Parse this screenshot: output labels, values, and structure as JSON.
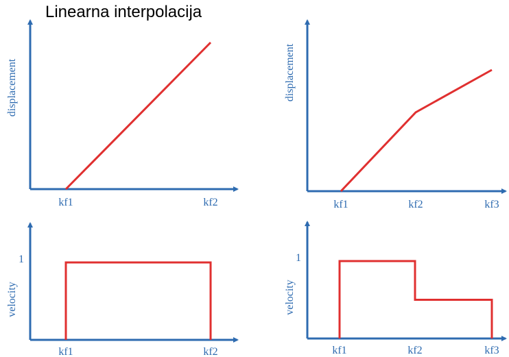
{
  "title": "Linearna interpolacija",
  "colors": {
    "axis": "#2e6bb0",
    "line": "#e03030",
    "label": "#2e6bb0"
  },
  "chart_data": [
    {
      "type": "line",
      "ylabel": "displacement",
      "categories": [
        "kf1",
        "kf2"
      ],
      "x": [
        1,
        2
      ],
      "values": [
        0,
        1
      ],
      "ylim": [
        0,
        1.1
      ]
    },
    {
      "type": "line",
      "ylabel": "displacement",
      "categories": [
        "kf1",
        "kf2",
        "kf3"
      ],
      "x": [
        1,
        2,
        3
      ],
      "values": [
        0,
        0.65,
        1
      ],
      "ylim": [
        0,
        1.1
      ]
    },
    {
      "type": "line",
      "ylabel": "velocity",
      "yticks": [
        "1"
      ],
      "categories": [
        "kf1",
        "kf2"
      ],
      "x": [
        1,
        1,
        2,
        2
      ],
      "values": [
        0,
        1,
        1,
        0
      ],
      "ylim": [
        0,
        1.2
      ]
    },
    {
      "type": "line",
      "ylabel": "velocity",
      "yticks": [
        "1"
      ],
      "categories": [
        "kf1",
        "kf2",
        "kf3"
      ],
      "x": [
        1,
        1,
        2,
        2,
        3,
        3
      ],
      "values": [
        0,
        1,
        1,
        0.5,
        0.5,
        0
      ],
      "ylim": [
        0,
        1.2
      ]
    }
  ]
}
